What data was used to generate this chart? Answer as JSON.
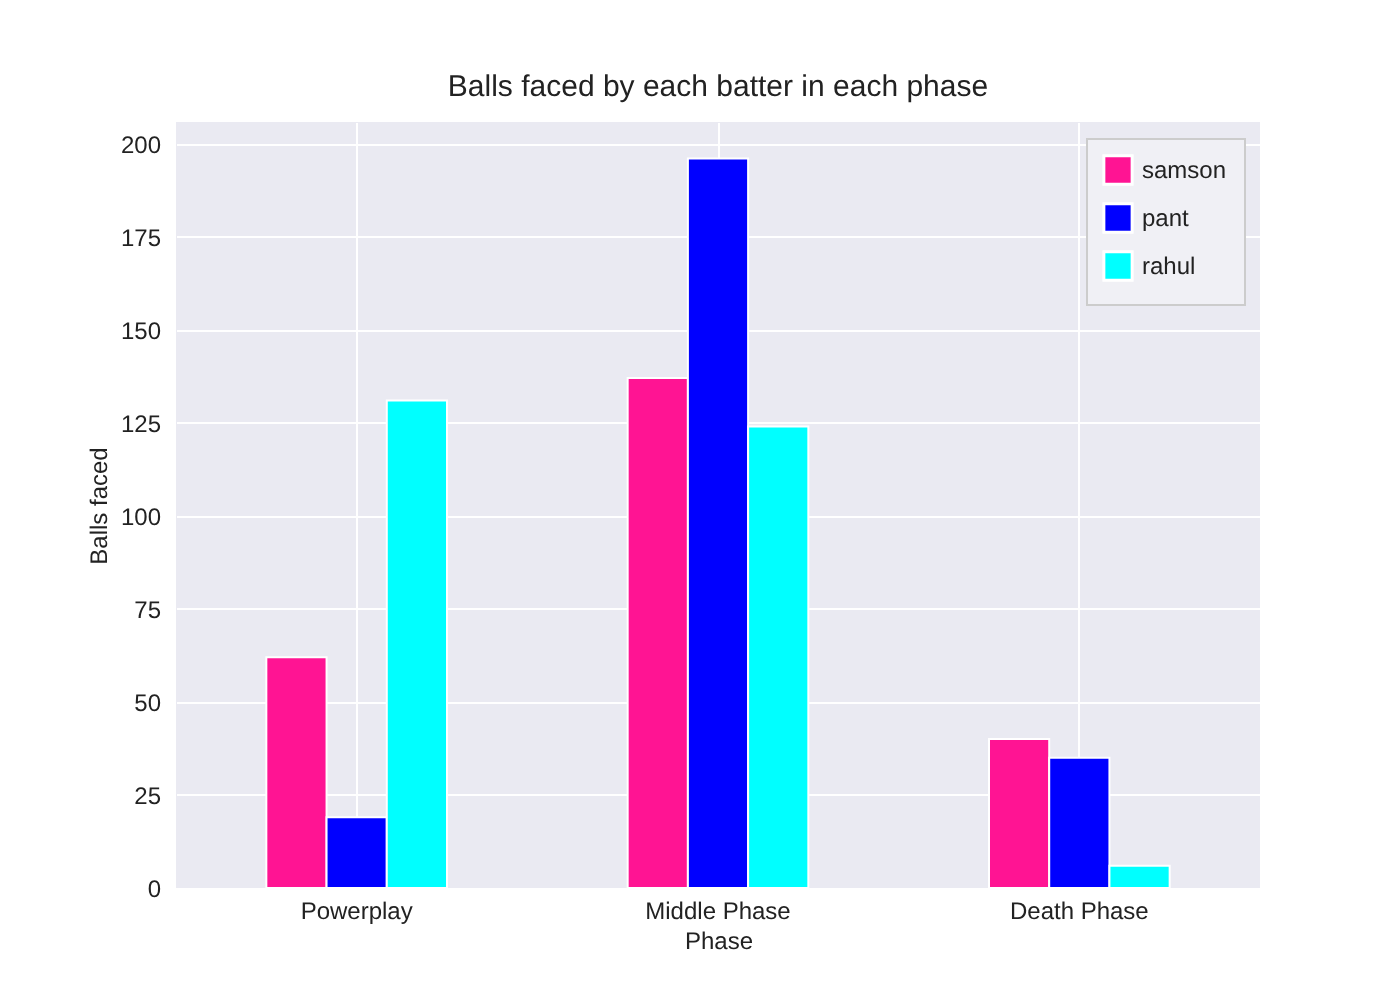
{
  "chart_data": {
    "type": "bar",
    "title": "Balls faced by each batter in each phase",
    "xlabel": "Phase",
    "ylabel": "Balls faced",
    "categories": [
      "Powerplay",
      "Middle Phase",
      "Death Phase"
    ],
    "series": [
      {
        "name": "samson",
        "color": "#ff1493",
        "values": [
          62,
          137,
          40
        ]
      },
      {
        "name": "pant",
        "color": "#0000ff",
        "values": [
          19,
          196,
          35
        ]
      },
      {
        "name": "rahul",
        "color": "#00ffff",
        "values": [
          131,
          124,
          6
        ]
      }
    ],
    "ylim": [
      0,
      205.8
    ],
    "yticks": [
      0,
      25,
      50,
      75,
      100,
      125,
      150,
      175,
      200
    ],
    "grid": true,
    "legend": "top right"
  }
}
